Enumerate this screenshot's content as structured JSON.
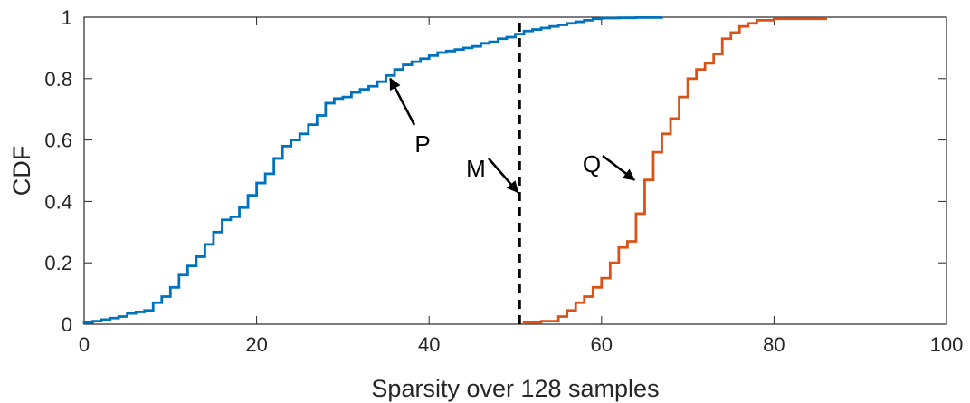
{
  "chart_data": {
    "type": "line",
    "xlabel": "Sparsity over 128 samples",
    "ylabel": "CDF",
    "xlim": [
      0,
      100
    ],
    "ylim": [
      0,
      1
    ],
    "xticks": [
      "0",
      "20",
      "40",
      "60",
      "80",
      "100"
    ],
    "yticks": [
      "0",
      "0.2",
      "0.4",
      "0.6",
      "0.8",
      "1"
    ],
    "grid": false,
    "series": [
      {
        "name": "P",
        "color": "#0072BD",
        "step": true,
        "x": [
          0,
          1,
          2,
          3,
          4,
          5,
          6,
          7,
          8,
          9,
          10,
          11,
          12,
          13,
          14,
          15,
          16,
          17,
          18,
          19,
          20,
          21,
          22,
          23,
          24,
          25,
          26,
          27,
          28,
          29,
          30,
          31,
          32,
          33,
          34,
          35,
          36,
          37,
          38,
          39,
          40,
          41,
          42,
          43,
          44,
          45,
          46,
          47,
          48,
          49,
          50,
          51,
          52,
          53,
          54,
          55,
          56,
          57,
          58,
          59,
          60,
          62,
          64,
          67
        ],
        "y": [
          0.005,
          0.01,
          0.015,
          0.02,
          0.025,
          0.035,
          0.04,
          0.045,
          0.07,
          0.09,
          0.12,
          0.16,
          0.19,
          0.22,
          0.26,
          0.3,
          0.34,
          0.35,
          0.38,
          0.42,
          0.46,
          0.49,
          0.54,
          0.58,
          0.6,
          0.62,
          0.65,
          0.68,
          0.72,
          0.735,
          0.74,
          0.755,
          0.765,
          0.775,
          0.79,
          0.81,
          0.83,
          0.845,
          0.855,
          0.865,
          0.875,
          0.885,
          0.89,
          0.895,
          0.9,
          0.905,
          0.915,
          0.92,
          0.93,
          0.935,
          0.945,
          0.955,
          0.96,
          0.965,
          0.97,
          0.975,
          0.98,
          0.985,
          0.99,
          0.995,
          0.997,
          0.998,
          0.999,
          1.0
        ]
      },
      {
        "name": "Q",
        "color": "#D95319",
        "step": true,
        "x": [
          51,
          53,
          55,
          56,
          57,
          58,
          59,
          60,
          61,
          62,
          63,
          64,
          65,
          66,
          67,
          68,
          69,
          70,
          71,
          72,
          73,
          74,
          75,
          76,
          77,
          78,
          80,
          86
        ],
        "y": [
          0.005,
          0.01,
          0.025,
          0.045,
          0.07,
          0.09,
          0.12,
          0.15,
          0.2,
          0.25,
          0.27,
          0.36,
          0.47,
          0.56,
          0.62,
          0.67,
          0.74,
          0.8,
          0.83,
          0.85,
          0.88,
          0.93,
          0.95,
          0.97,
          0.98,
          0.99,
          0.995,
          1.0
        ]
      }
    ],
    "vline": {
      "name": "M",
      "x": 50.5,
      "style": "dashed",
      "color": "#000000"
    },
    "annotations": [
      {
        "label": "P",
        "target": [
          35.5,
          0.8
        ]
      },
      {
        "label": "M",
        "target": [
          50.3,
          0.43
        ]
      },
      {
        "label": "Q",
        "target": [
          63.8,
          0.47
        ]
      }
    ]
  }
}
